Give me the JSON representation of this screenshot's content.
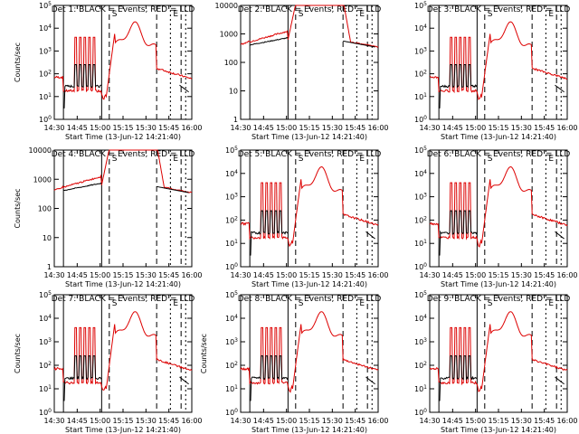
{
  "chart_data": [
    {
      "type": "line",
      "title": "Det  1: BLACK = Events, RED = LLD",
      "ylabel": "Counts/sec",
      "xlabel": "Start Time (13-Jun-12 14:21:40)",
      "x_ticks": [
        "14:30",
        "14:45",
        "15:00",
        "15:15",
        "15:30",
        "15:45",
        "16:00"
      ],
      "y_ticks": [
        "10^0",
        "10^1",
        "10^2",
        "10^3",
        "10^4",
        "10^5"
      ],
      "ylim": [
        1,
        100000
      ],
      "profile": "A",
      "series": [
        {
          "color": "#000000"
        },
        {
          "color": "#dd0000"
        }
      ]
    },
    {
      "type": "line",
      "title": "Det  2: BLACK = Events, RED = LLD",
      "ylabel": "",
      "xlabel": "Start Time (13-Jun-12 14:21:40)",
      "x_ticks": [
        "14:30",
        "14:45",
        "15:00",
        "15:15",
        "15:30",
        "15:45",
        "16:00"
      ],
      "y_ticks": [
        "1",
        "10",
        "100",
        "1000",
        "10000"
      ],
      "ylim": [
        1,
        10000
      ],
      "profile": "B",
      "series": [
        {
          "color": "#000000"
        },
        {
          "color": "#dd0000"
        }
      ]
    },
    {
      "type": "line",
      "title": "Det  3: BLACK = Events, RED = LLD",
      "ylabel": "",
      "xlabel": "Start Time (13-Jun-12 14:21:40)",
      "x_ticks": [
        "14:30",
        "14:45",
        "15:00",
        "15:15",
        "15:30",
        "15:45",
        "16:00"
      ],
      "y_ticks": [
        "10^0",
        "10^1",
        "10^2",
        "10^3",
        "10^4",
        "10^5"
      ],
      "ylim": [
        1,
        100000
      ],
      "profile": "A",
      "series": [
        {
          "color": "#000000"
        },
        {
          "color": "#dd0000"
        }
      ]
    },
    {
      "type": "line",
      "title": "Det  4: BLACK = Events, RED = LLD",
      "ylabel": "Counts/sec",
      "xlabel": "Start Time (13-Jun-12 14:21:40)",
      "x_ticks": [
        "14:30",
        "14:45",
        "15:00",
        "15:15",
        "15:30",
        "15:45",
        "16:00"
      ],
      "y_ticks": [
        "1",
        "10",
        "100",
        "1000",
        "10000"
      ],
      "ylim": [
        1,
        10000
      ],
      "profile": "B",
      "series": [
        {
          "color": "#000000"
        },
        {
          "color": "#dd0000"
        }
      ]
    },
    {
      "type": "line",
      "title": "Det  5: BLACK = Events, RED = LLD",
      "ylabel": "",
      "xlabel": "Start Time (13-Jun-12 14:21:40)",
      "x_ticks": [
        "14:30",
        "14:45",
        "15:00",
        "15:15",
        "15:30",
        "15:45",
        "16:00"
      ],
      "y_ticks": [
        "10^0",
        "10^1",
        "10^2",
        "10^3",
        "10^4",
        "10^5"
      ],
      "ylim": [
        1,
        100000
      ],
      "profile": "A",
      "series": [
        {
          "color": "#000000"
        },
        {
          "color": "#dd0000"
        }
      ]
    },
    {
      "type": "line",
      "title": "Det  6: BLACK = Events, RED = LLD",
      "ylabel": "",
      "xlabel": "Start Time (13-Jun-12 14:21:40)",
      "x_ticks": [
        "14:30",
        "14:45",
        "15:00",
        "15:15",
        "15:30",
        "15:45",
        "16:00"
      ],
      "y_ticks": [
        "10^0",
        "10^1",
        "10^2",
        "10^3",
        "10^4",
        "10^5"
      ],
      "ylim": [
        1,
        100000
      ],
      "profile": "A",
      "series": [
        {
          "color": "#000000"
        },
        {
          "color": "#dd0000"
        }
      ]
    },
    {
      "type": "line",
      "title": "Det  7: BLACK = Events, RED = LLD",
      "ylabel": "Counts/sec",
      "xlabel": "Start Time (13-Jun-12 14:21:40)",
      "x_ticks": [
        "14:30",
        "14:45",
        "15:00",
        "15:15",
        "15:30",
        "15:45",
        "16:00"
      ],
      "y_ticks": [
        "10^0",
        "10^1",
        "10^2",
        "10^3",
        "10^4",
        "10^5"
      ],
      "ylim": [
        1,
        100000
      ],
      "profile": "A",
      "series": [
        {
          "color": "#000000"
        },
        {
          "color": "#dd0000"
        }
      ]
    },
    {
      "type": "line",
      "title": "Det  8: BLACK = Events, RED = LLD",
      "ylabel": "Counts/sec",
      "xlabel": "Start Time (13-Jun-12 14:21:40)",
      "x_ticks": [
        "14:30",
        "14:45",
        "15:00",
        "15:15",
        "15:30",
        "15:45",
        "16:00"
      ],
      "y_ticks": [
        "10^0",
        "10^1",
        "10^2",
        "10^3",
        "10^4",
        "10^5"
      ],
      "ylim": [
        1,
        100000
      ],
      "profile": "A",
      "series": [
        {
          "color": "#000000"
        },
        {
          "color": "#dd0000"
        }
      ]
    },
    {
      "type": "line",
      "title": "Det  9: BLACK = Events, RED = LLD",
      "ylabel": "",
      "xlabel": "Start Time (13-Jun-12 14:21:40)",
      "x_ticks": [
        "14:30",
        "14:45",
        "15:00",
        "15:15",
        "15:30",
        "15:45",
        "16:00"
      ],
      "y_ticks": [
        "10^0",
        "10^1",
        "10^2",
        "10^3",
        "10^4",
        "10^5"
      ],
      "ylim": [
        1,
        100000
      ],
      "profile": "A",
      "series": [
        {
          "color": "#000000"
        },
        {
          "color": "#dd0000"
        }
      ]
    }
  ],
  "markers": {
    "s": "S",
    "e": "E"
  }
}
